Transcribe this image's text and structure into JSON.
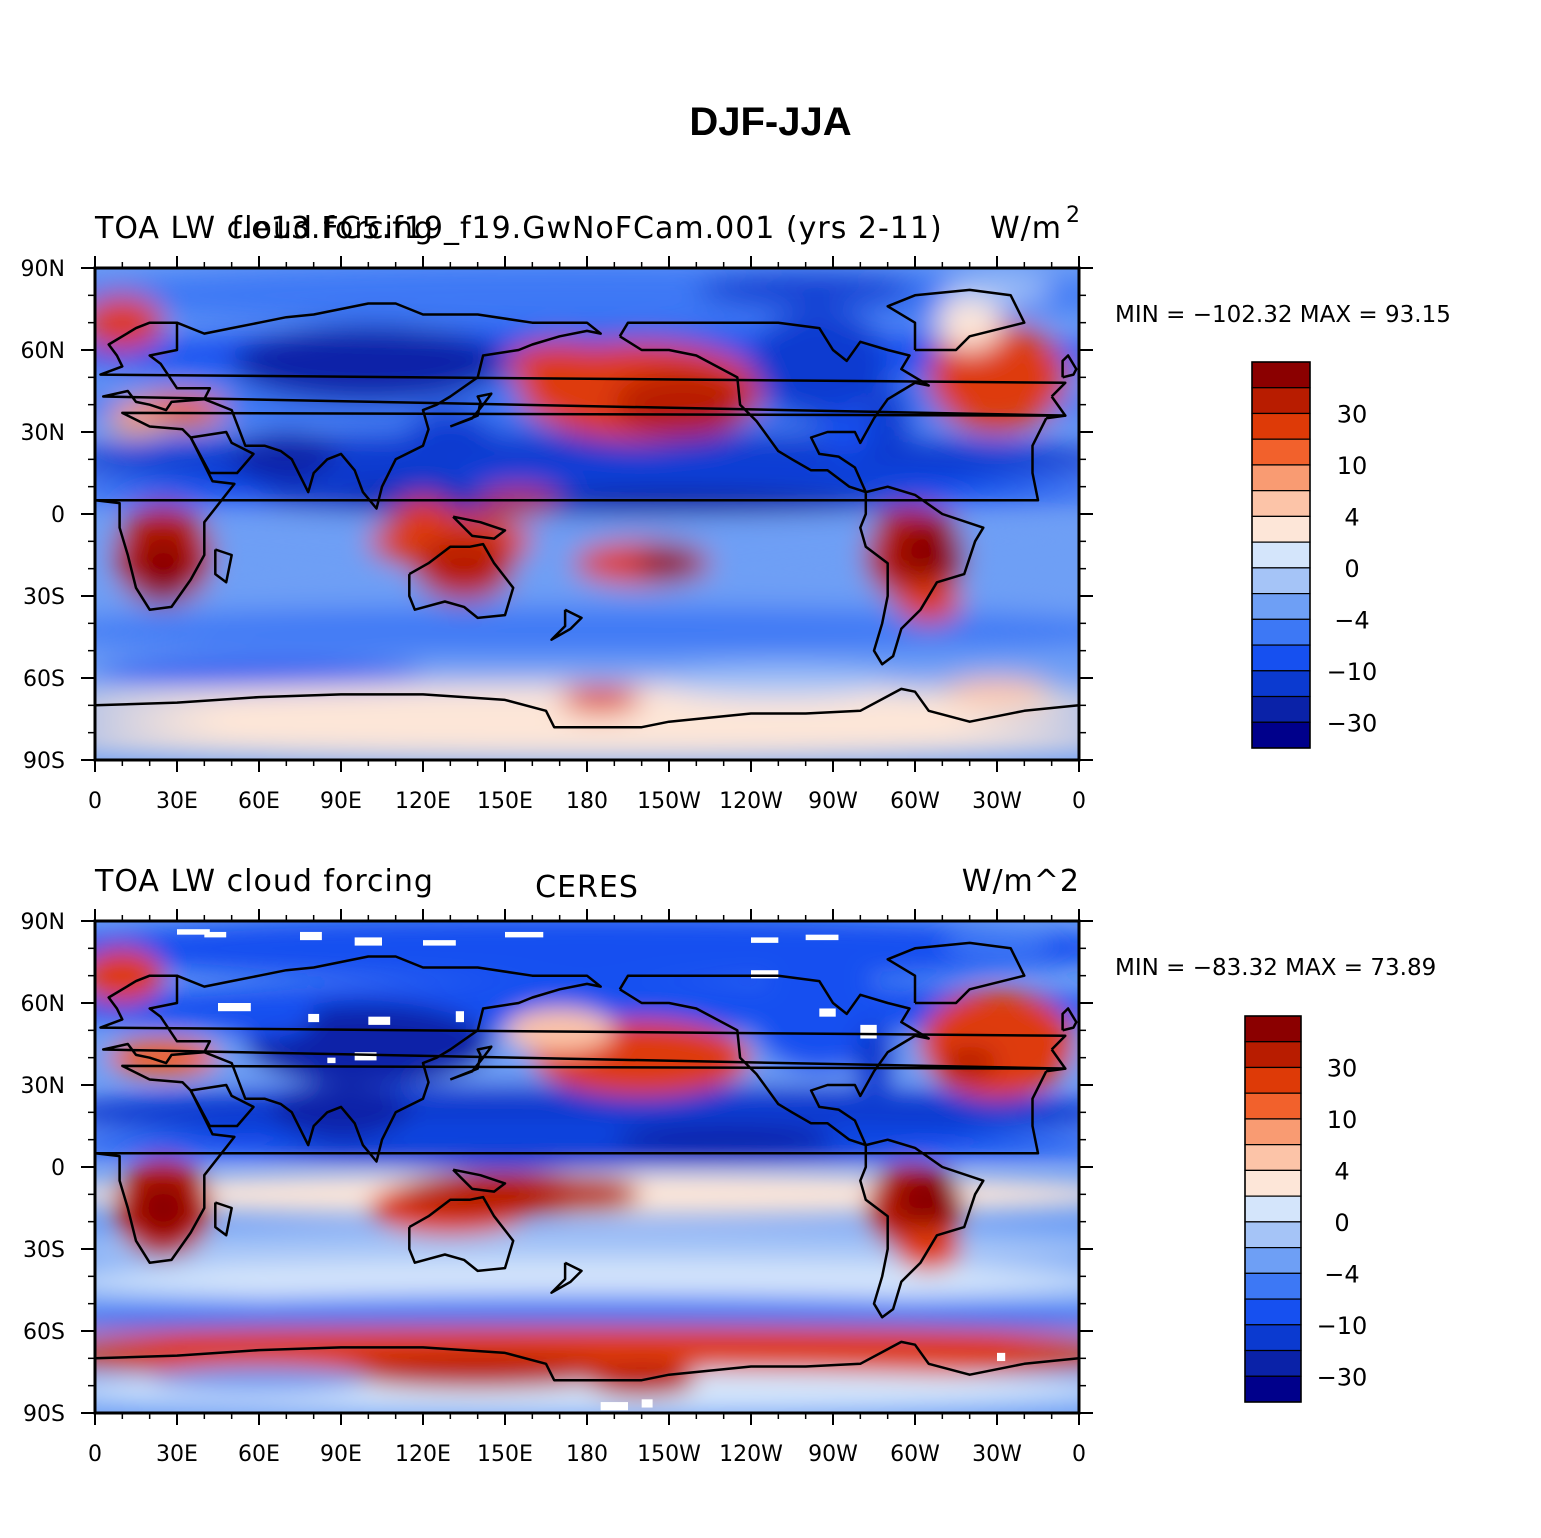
{
  "figure": {
    "title": "DJF-JJA"
  },
  "colors": {
    "levels": [
      "#00008b",
      "#0a22a8",
      "#0b3ad0",
      "#1650f0",
      "#3d78f5",
      "#6e9ff5",
      "#a5c4f7",
      "#d4e5fb",
      "#fde6d8",
      "#fcc4a8",
      "#f99b72",
      "#f2612c",
      "#de3a07",
      "#b81c00",
      "#8b0000"
    ],
    "coastline": "#000000",
    "missing": "#ffffff"
  },
  "axes": {
    "x_ticks": [
      "0",
      "30E",
      "60E",
      "90E",
      "120E",
      "150E",
      "180",
      "150W",
      "120W",
      "90W",
      "60W",
      "30W",
      "0"
    ],
    "y_ticks": [
      "90N",
      "60N",
      "30N",
      "0",
      "30S",
      "60S",
      "90S"
    ]
  },
  "panels": [
    {
      "id": "model",
      "left_title": "TOA LW cloud forcing",
      "center_title": "f.e13.FC5.f19_f19.GwNoFCam.001 (yrs 2-11)",
      "right_title": "W/m",
      "right_title_sup": "2",
      "stats": "MIN = −102.32  MAX =   93.15",
      "colorbar_labels": [
        "30",
        "10",
        "4",
        "0",
        "−4",
        "−10",
        "−30"
      ]
    },
    {
      "id": "obs",
      "left_title": "TOA LW cloud forcing",
      "center_title": "CERES",
      "right_title": "W/m^2",
      "right_title_sup": "",
      "stats": "MIN = −83.32  MAX =   73.89",
      "colorbar_labels": [
        "30",
        "10",
        "4",
        "0",
        "−4",
        "−10",
        "−30"
      ]
    }
  ],
  "chart_data": {
    "type": "heatmap",
    "title": "DJF-JJA",
    "units": "W/m^2",
    "contour_levels": [
      -40,
      -30,
      -20,
      -10,
      -6,
      -4,
      -2,
      0,
      2,
      4,
      6,
      10,
      20,
      30,
      40
    ],
    "panels": [
      {
        "name": "f.e13.FC5.f19_f19.GwNoFCam.001 (yrs 2-11)",
        "min": -102.32,
        "max": 93.15
      },
      {
        "name": "CERES",
        "min": -83.32,
        "max": 73.89
      }
    ],
    "xlim": [
      0,
      360
    ],
    "ylim": [
      -90,
      90
    ]
  }
}
